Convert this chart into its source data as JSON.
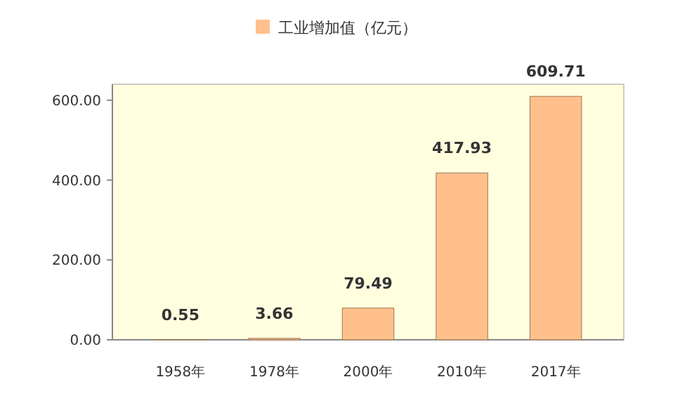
{
  "chart_data": {
    "type": "bar",
    "categories": [
      "1958年",
      "1978年",
      "2000年",
      "2010年",
      "2017年"
    ],
    "series": [
      {
        "name": "工业增加值（亿元）",
        "color": "#ffc08c",
        "values": [
          0.55,
          3.66,
          79.49,
          417.93,
          609.71
        ],
        "value_labels": [
          "0.55",
          "3.66",
          "79.49",
          "417.93",
          "609.71"
        ]
      }
    ],
    "ylim": [
      0,
      640
    ],
    "yticks": [
      {
        "value": 0,
        "label": "0.00"
      },
      {
        "value": 200,
        "label": "200.00"
      },
      {
        "value": 400,
        "label": "400.00"
      },
      {
        "value": 600,
        "label": "600.00"
      }
    ],
    "legend": "top",
    "grid": false
  }
}
